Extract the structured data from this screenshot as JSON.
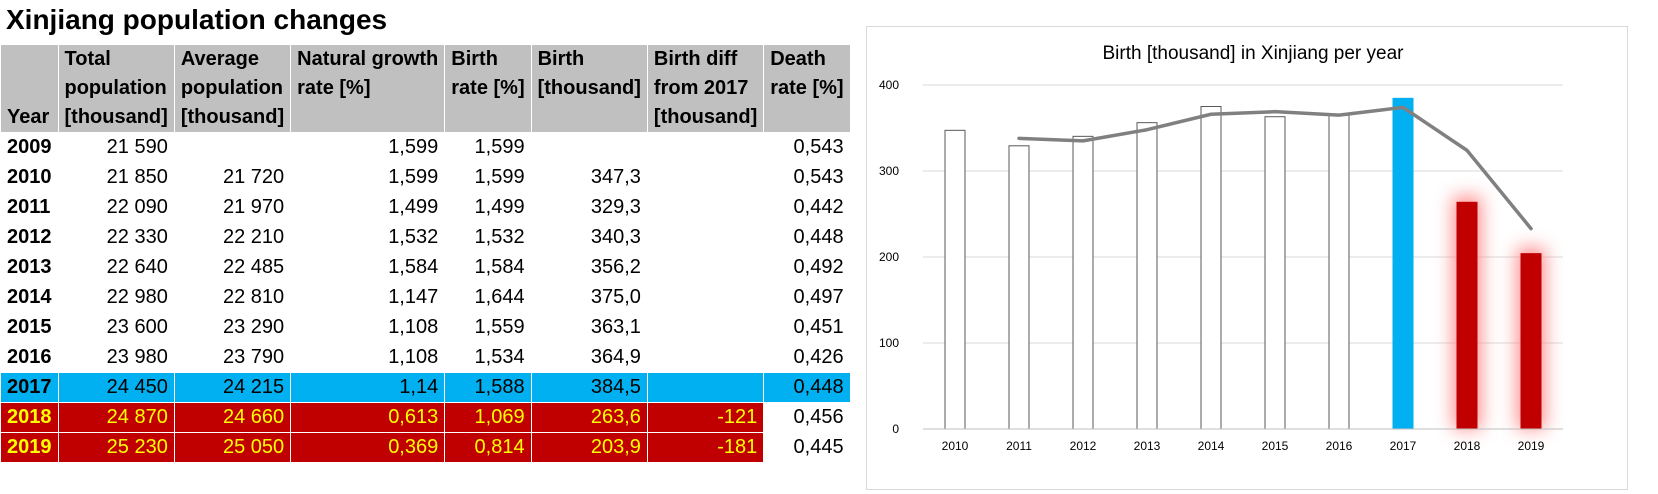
{
  "page_title": "Xinjiang population changes",
  "table": {
    "headers": {
      "year": "Year",
      "total": [
        "Total",
        "population",
        "[thousand]"
      ],
      "average": [
        "Average",
        "population",
        "[thousand]"
      ],
      "natural": [
        "Natural growth",
        "rate [%]"
      ],
      "birth_rate": [
        "Birth",
        "rate [%]"
      ],
      "birth": [
        "Birth",
        "[thousand]"
      ],
      "birth_diff": [
        "Birth diff",
        "from 2017",
        "[thousand]"
      ],
      "death": [
        "Death",
        "rate [%]"
      ]
    },
    "rows": [
      {
        "year": "2009",
        "total": "21 590",
        "average": "",
        "natural": "1,599",
        "birth_rate": "1,599",
        "birth": "",
        "birth_diff": "",
        "death": "0,543",
        "style": "plain"
      },
      {
        "year": "2010",
        "total": "21 850",
        "average": "21 720",
        "natural": "1,599",
        "birth_rate": "1,599",
        "birth": "347,3",
        "birth_diff": "",
        "death": "0,543",
        "style": "plain"
      },
      {
        "year": "2011",
        "total": "22 090",
        "average": "21 970",
        "natural": "1,499",
        "birth_rate": "1,499",
        "birth": "329,3",
        "birth_diff": "",
        "death": "0,442",
        "style": "plain"
      },
      {
        "year": "2012",
        "total": "22 330",
        "average": "22 210",
        "natural": "1,532",
        "birth_rate": "1,532",
        "birth": "340,3",
        "birth_diff": "",
        "death": "0,448",
        "style": "plain"
      },
      {
        "year": "2013",
        "total": "22 640",
        "average": "22 485",
        "natural": "1,584",
        "birth_rate": "1,584",
        "birth": "356,2",
        "birth_diff": "",
        "death": "0,492",
        "style": "plain"
      },
      {
        "year": "2014",
        "total": "22 980",
        "average": "22 810",
        "natural": "1,147",
        "birth_rate": "1,644",
        "birth": "375,0",
        "birth_diff": "",
        "death": "0,497",
        "style": "plain"
      },
      {
        "year": "2015",
        "total": "23 600",
        "average": "23 290",
        "natural": "1,108",
        "birth_rate": "1,559",
        "birth": "363,1",
        "birth_diff": "",
        "death": "0,451",
        "style": "plain"
      },
      {
        "year": "2016",
        "total": "23 980",
        "average": "23 790",
        "natural": "1,108",
        "birth_rate": "1,534",
        "birth": "364,9",
        "birth_diff": "",
        "death": "0,426",
        "style": "plain"
      },
      {
        "year": "2017",
        "total": "24 450",
        "average": "24 215",
        "natural": "1,14",
        "birth_rate": "1,588",
        "birth": "384,5",
        "birth_diff": "",
        "death": "0,448",
        "style": "blue"
      },
      {
        "year": "2018",
        "total": "24 870",
        "average": "24 660",
        "natural": "0,613",
        "birth_rate": "1,069",
        "birth": "263,6",
        "birth_diff": "-121",
        "death": "0,456",
        "style": "red"
      },
      {
        "year": "2019",
        "total": "25 230",
        "average": "25 050",
        "natural": "0,369",
        "birth_rate": "0,814",
        "birth": "203,9",
        "birth_diff": "-181",
        "death": "0,445",
        "style": "red"
      }
    ]
  },
  "chart_data": {
    "type": "bar",
    "title": "Birth [thousand] in Xinjiang per year",
    "categories": [
      "2010",
      "2011",
      "2012",
      "2013",
      "2014",
      "2015",
      "2016",
      "2017",
      "2018",
      "2019"
    ],
    "series": [
      {
        "values": [
          347.3,
          329.3,
          340.3,
          356.2,
          375.0,
          363.1,
          364.9,
          384.5,
          263.6,
          203.9
        ]
      }
    ],
    "trend_line": {
      "type": "line",
      "values": [
        null,
        338,
        335,
        348,
        366,
        369,
        365,
        374,
        324,
        233
      ]
    },
    "ylim": [
      0,
      400
    ],
    "yticks": [
      "0",
      "100",
      "200",
      "300",
      "400"
    ],
    "grid": true,
    "legend": "none",
    "colors": {
      "default_bar": "#ffffff",
      "bar_outline": "#595959",
      "highlight_blue": "#00b0f0",
      "highlight_red": "#c00000",
      "glow": "#ff8080",
      "line": "#808080",
      "grid": "#d9d9d9"
    },
    "bar_styles": [
      "plain",
      "plain",
      "plain",
      "plain",
      "plain",
      "plain",
      "plain",
      "blue",
      "red",
      "red"
    ]
  },
  "colors": {
    "header_bg": "#c0c0c0",
    "blue_row": "#00b0f0",
    "red_row": "#c00000",
    "red_row_text": "#ffff00"
  }
}
